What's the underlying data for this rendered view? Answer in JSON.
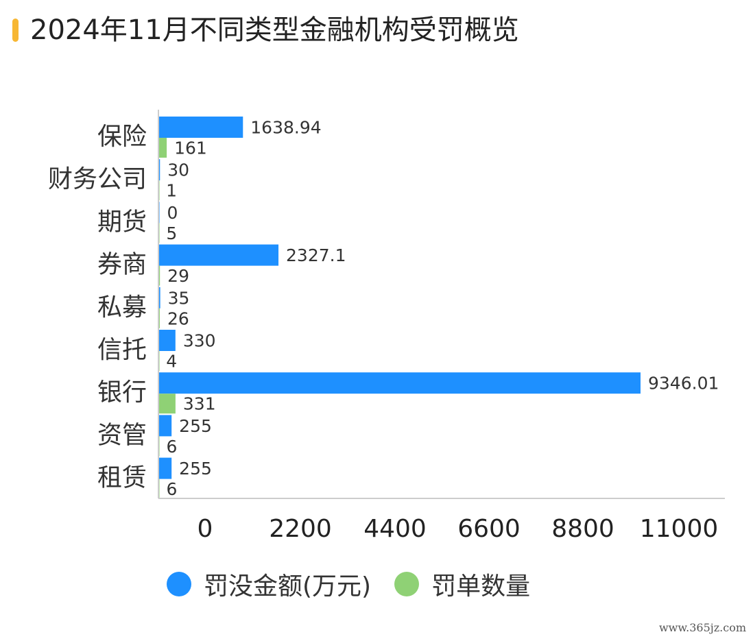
{
  "title": "2024年11月不同类型金融机构受罚概览",
  "watermark": "www.365jz.com",
  "colors": {
    "accent_bar": "#f7b733",
    "axis": "#cccccc"
  },
  "chart_data": {
    "type": "bar",
    "orientation": "horizontal",
    "categories": [
      "保险",
      "财务公司",
      "期货",
      "券商",
      "私募",
      "信托",
      "银行",
      "资管",
      "租赁"
    ],
    "series": [
      {
        "name": "罚没金额(万元)",
        "color": "#1e90ff",
        "values": [
          1638.94,
          30,
          0,
          2327.1,
          35,
          330,
          9346.01,
          255,
          255
        ],
        "labels": [
          "1638.94",
          "30",
          "0",
          "2327.1",
          "35",
          "330",
          "9346.01",
          "255",
          "255"
        ]
      },
      {
        "name": "罚单数量",
        "color": "#8fd175",
        "values": [
          161,
          1,
          5,
          29,
          26,
          4,
          331,
          6,
          6
        ],
        "labels": [
          "161",
          "1",
          "5",
          "29",
          "26",
          "4",
          "331",
          "6",
          "6"
        ]
      }
    ],
    "x_ticks": [
      "0",
      "2200",
      "4400",
      "6600",
      "8800",
      "11000"
    ],
    "xlim": [
      0,
      11000
    ],
    "legend_position": "bottom",
    "grid": false
  }
}
